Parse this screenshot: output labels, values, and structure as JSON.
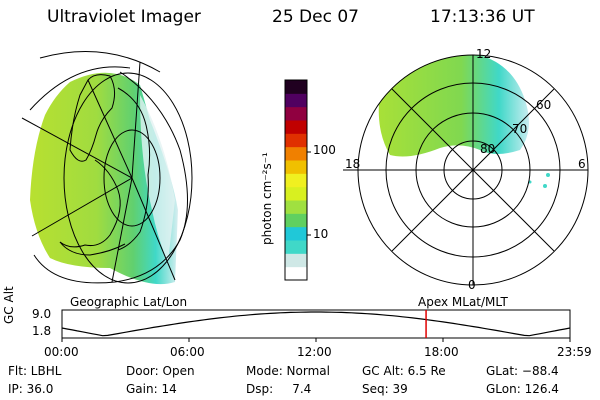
{
  "header": {
    "instrument": "Ultraviolet Imager",
    "date": "25 Dec 07",
    "time": "17:13:36 UT"
  },
  "colorbar": {
    "unit_label": "photon cm⁻²s⁻¹",
    "ticks": [
      "100",
      "10"
    ],
    "colors": [
      "#ffffff",
      "#cfe8e6",
      "#40d8c8",
      "#20c8d8",
      "#60d060",
      "#a0e040",
      "#d8f020",
      "#f0f020",
      "#f0c000",
      "#f08000",
      "#e03000",
      "#c00000",
      "#900040",
      "#500060",
      "#200020"
    ]
  },
  "left_panel": {
    "label": "Geographic Lat/Lon"
  },
  "right_panel": {
    "label": "Apex MLat/MLT",
    "mlt_labels": [
      "12",
      "18",
      "6",
      "0"
    ],
    "lat_labels": [
      "60",
      "70",
      "80"
    ]
  },
  "timeline": {
    "axis_label": "GC Alt",
    "y_ticks": [
      "9.0",
      "1.8"
    ],
    "x_ticks": [
      "00:00",
      "06:00",
      "12:00",
      "18:00",
      "23:59"
    ],
    "current_time_hours": 17.2
  },
  "footer": {
    "col1": [
      "Flt: LBHL",
      "IP: 36.0"
    ],
    "col2": [
      "Door: Open",
      "Gain: 14"
    ],
    "col3": [
      "Mode: Normal",
      "Dsp:     7.4"
    ],
    "col4": [
      "GC Alt: 6.5 Re",
      "Seq: 39"
    ],
    "col5": [
      "GLat: −88.4",
      "GLon: 126.4"
    ]
  }
}
